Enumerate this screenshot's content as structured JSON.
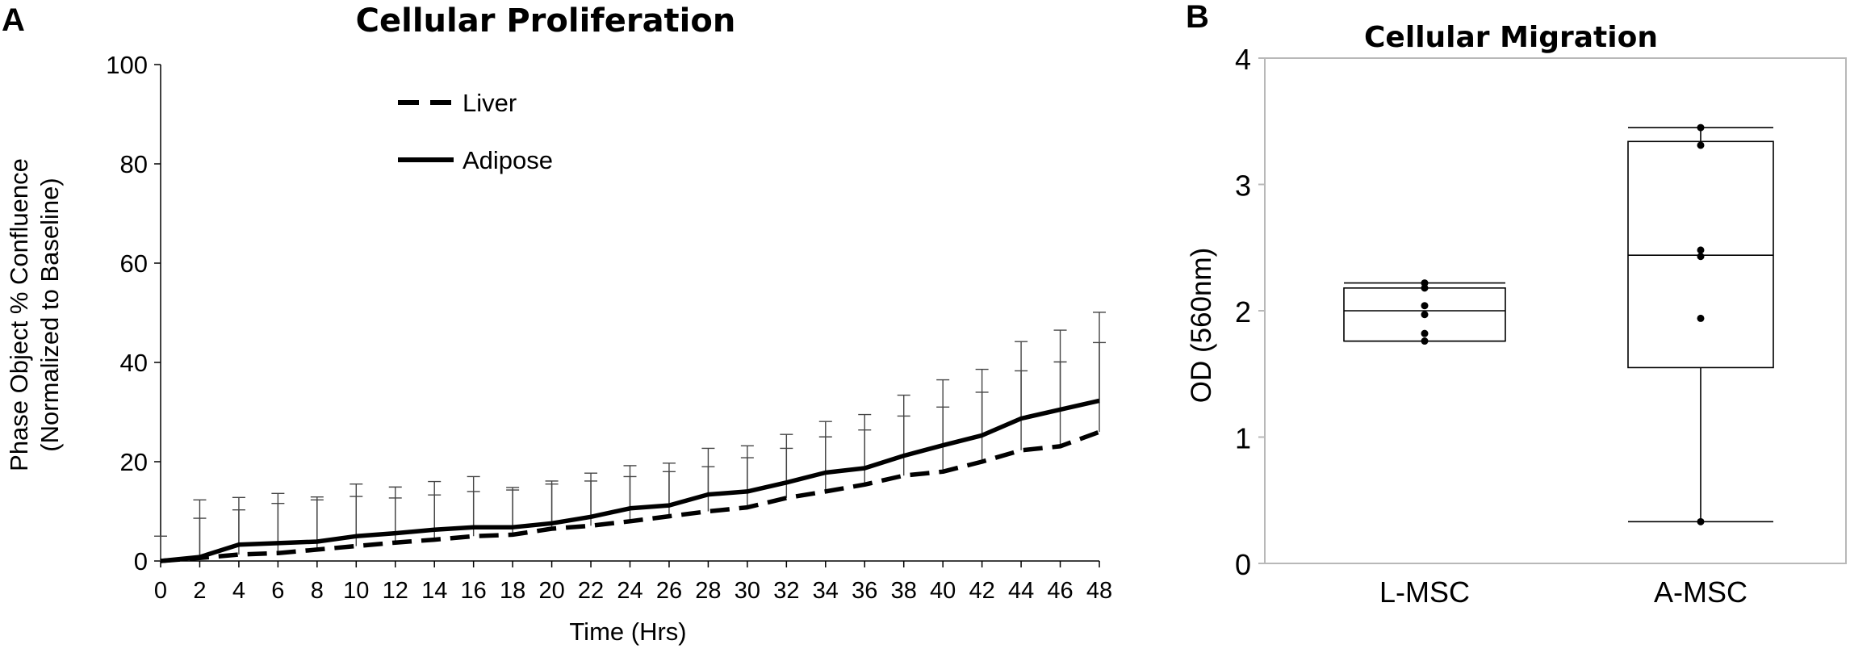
{
  "panels": {
    "a": {
      "letter": "A",
      "chart_data": {
        "type": "line",
        "title": "Cellular Proliferation",
        "xlabel": "Time (Hrs)",
        "ylabel_line1": "Phase Object % Confluence",
        "ylabel_line2": "(Normalized to Baseline)",
        "x": [
          0,
          2,
          4,
          6,
          8,
          10,
          12,
          14,
          16,
          18,
          20,
          22,
          24,
          26,
          28,
          30,
          32,
          34,
          36,
          38,
          40,
          42,
          44,
          46,
          48
        ],
        "xlim": [
          0,
          48
        ],
        "ylim": [
          0,
          100
        ],
        "x_ticks": [
          "0",
          "2",
          "4",
          "6",
          "8",
          "10",
          "12",
          "14",
          "16",
          "18",
          "20",
          "22",
          "24",
          "26",
          "28",
          "30",
          "32",
          "34",
          "36",
          "38",
          "40",
          "42",
          "44",
          "46",
          "48"
        ],
        "y_ticks": [
          "0",
          "20",
          "40",
          "60",
          "80",
          "100"
        ],
        "legend": "top-left",
        "series": [
          {
            "name": "Liver",
            "style": "dashed",
            "values": [
              0,
              0.6,
              1.3,
              1.6,
              2.3,
              3.0,
              3.7,
              4.3,
              5.0,
              5.3,
              6.5,
              7.1,
              8.0,
              9.0,
              10.0,
              10.8,
              12.7,
              14.0,
              15.4,
              17.2,
              18.0,
              20.0,
              22.3,
              23.1,
              26.0
            ],
            "error": [
              5,
              8,
              9,
              10,
              10,
              10,
              9,
              9,
              9,
              9,
              9,
              9,
              9,
              9,
              9,
              10,
              10,
              11,
              11,
              12,
              13,
              14,
              16,
              17,
              18
            ]
          },
          {
            "name": "Adipose",
            "style": "solid",
            "values": [
              0,
              0.8,
              3.3,
              3.6,
              3.9,
              5.0,
              5.6,
              6.3,
              6.8,
              6.8,
              7.6,
              8.9,
              10.6,
              11.2,
              13.4,
              14.0,
              15.8,
              17.8,
              18.7,
              21.2,
              23.3,
              25.3,
              28.7,
              30.5,
              32.3
            ],
            "error": [
              0,
              11.5,
              9.5,
              10,
              9,
              10.5,
              9.3,
              9.7,
              10.2,
              8,
              8.5,
              8.8,
              8.6,
              8.5,
              9.3,
              9.2,
              9.7,
              10.3,
              10.8,
              12.2,
              13.2,
              13.3,
              15.5,
              16,
              17.8
            ]
          }
        ]
      }
    },
    "b": {
      "letter": "B",
      "chart_data": {
        "type": "box",
        "title": "Cellular Migration",
        "ylabel": "OD (560nm)",
        "ylim": [
          0,
          4
        ],
        "y_ticks": [
          "0",
          "1",
          "2",
          "3",
          "4"
        ],
        "categories": [
          "L-MSC",
          "A-MSC"
        ],
        "boxes": [
          {
            "name": "L-MSC",
            "whisker_low": 1.76,
            "q1": 1.76,
            "median": 2.0,
            "q3": 2.18,
            "whisker_high": 2.22,
            "points": [
              1.76,
              1.82,
              1.97,
              2.04,
              2.18,
              2.22
            ]
          },
          {
            "name": "A-MSC",
            "whisker_low": 0.33,
            "q1": 1.55,
            "median": 2.44,
            "q3": 3.34,
            "whisker_high": 3.45,
            "points": [
              0.33,
              1.94,
              2.43,
              2.48,
              3.31,
              3.45
            ]
          }
        ]
      }
    }
  }
}
